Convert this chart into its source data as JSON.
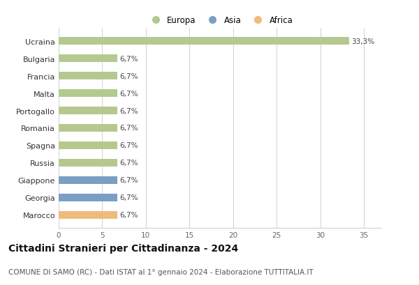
{
  "countries": [
    "Ucraina",
    "Bulgaria",
    "Francia",
    "Malta",
    "Portogallo",
    "Romania",
    "Spagna",
    "Russia",
    "Giappone",
    "Georgia",
    "Marocco"
  ],
  "values": [
    33.3,
    6.7,
    6.7,
    6.7,
    6.7,
    6.7,
    6.7,
    6.7,
    6.7,
    6.7,
    6.7
  ],
  "labels": [
    "33,3%",
    "6,7%",
    "6,7%",
    "6,7%",
    "6,7%",
    "6,7%",
    "6,7%",
    "6,7%",
    "6,7%",
    "6,7%",
    "6,7%"
  ],
  "continents": [
    "Europa",
    "Europa",
    "Europa",
    "Europa",
    "Europa",
    "Europa",
    "Europa",
    "Europa",
    "Asia",
    "Asia",
    "Africa"
  ],
  "colors": {
    "Europa": "#b5c98e",
    "Asia": "#7a9fc2",
    "Africa": "#f0b97d"
  },
  "legend_items": [
    "Europa",
    "Asia",
    "Africa"
  ],
  "legend_colors": [
    "#b5c98e",
    "#7a9fc2",
    "#f0b97d"
  ],
  "xlim": [
    0,
    37
  ],
  "xticks": [
    0,
    5,
    10,
    15,
    20,
    25,
    30,
    35
  ],
  "title": "Cittadini Stranieri per Cittadinanza - 2024",
  "subtitle": "COMUNE DI SAMO (RC) - Dati ISTAT al 1° gennaio 2024 - Elaborazione TUTTITALIA.IT",
  "title_fontsize": 10,
  "subtitle_fontsize": 7.5,
  "bg_color": "#ffffff",
  "grid_color": "#d0d0d0",
  "bar_height": 0.45
}
